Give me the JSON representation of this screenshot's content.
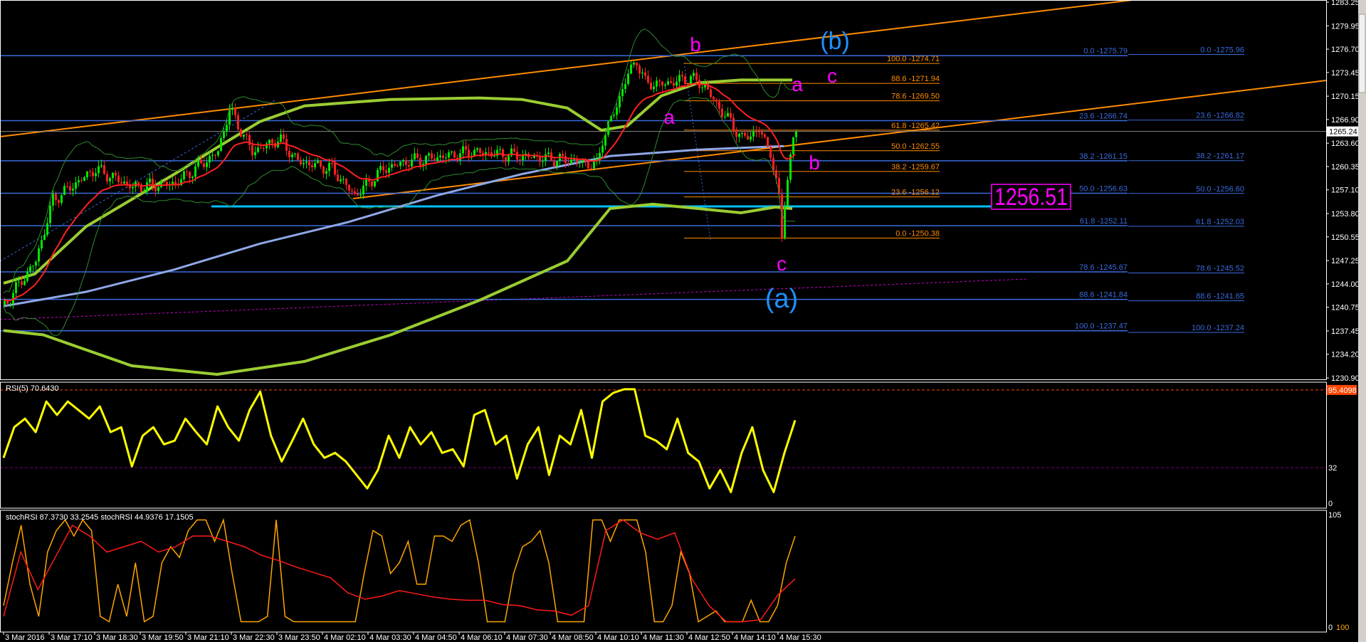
{
  "chart_data": {
    "type": "candlestick",
    "timeframe_bar_minutes": 5,
    "price_axis": {
      "range": [
        1230.9,
        1283.25
      ],
      "ticks": [
        "1283.25",
        "1279.95",
        "1276.70",
        "1273.45",
        "1270.15",
        "1266.90",
        "1263.60",
        "1260.35",
        "1257.10",
        "1253.80",
        "1250.55",
        "1247.25",
        "1244.00",
        "1240.75",
        "1237.45",
        "1234.20",
        "1230.90"
      ],
      "current_price": "1265.24"
    },
    "time_axis": {
      "ticks": [
        "3 Mar 2016",
        "3 Mar 17:10",
        "3 Mar 18:30",
        "3 Mar 19:50",
        "3 Mar 21:10",
        "3 Mar 22:30",
        "3 Mar 23:50",
        "4 Mar 02:10",
        "4 Mar 03:30",
        "4 Mar 04:50",
        "4 Mar 06:10",
        "4 Mar 07:30",
        "4 Mar 08:50",
        "4 Mar 10:10",
        "4 Mar 11:30",
        "4 Mar 12:50",
        "4 Mar 14:10",
        "4 Mar 15:30"
      ]
    },
    "price_path": [
      [
        "3 Mar 15:50",
        1241.1
      ],
      [
        "3 Mar 16:45",
        1247.2
      ],
      [
        "3 Mar 17:15",
        1255.7
      ],
      [
        "3 Mar 18:30",
        1260.0
      ],
      [
        "3 Mar 19:35",
        1257.5
      ],
      [
        "3 Mar 20:50",
        1258.0
      ],
      [
        "3 Mar 22:05",
        1262.4
      ],
      [
        "3 Mar 22:25",
        1268.4
      ],
      [
        "3 Mar 23:05",
        1262.4
      ],
      [
        "3 Mar 23:55",
        1264.2
      ],
      [
        "4 Mar 00:50",
        1261.1
      ],
      [
        "4 Mar 02:25",
        1260.0
      ],
      [
        "4 Mar 03:05",
        1256.3
      ],
      [
        "4 Mar 03:55",
        1260.0
      ],
      [
        "4 Mar 04:40",
        1261.1
      ],
      [
        "4 Mar 05:45",
        1261.8
      ],
      [
        "4 Mar 06:30",
        1262.4
      ],
      [
        "4 Mar 08:00",
        1261.8
      ],
      [
        "4 Mar 09:35",
        1261.1
      ],
      [
        "4 Mar 10:10",
        1260.5
      ],
      [
        "4 Mar 10:20",
        1264.2
      ],
      [
        "4 Mar 10:40",
        1267.8
      ],
      [
        "4 Mar 11:05",
        1273.3
      ],
      [
        "4 Mar 11:20",
        1275.1
      ],
      [
        "4 Mar 11:35",
        1272.0
      ],
      [
        "4 Mar 12:05",
        1271.8
      ],
      [
        "4 Mar 12:55",
        1272.7
      ],
      [
        "4 Mar 13:20",
        1271.5
      ],
      [
        "4 Mar 13:40",
        1269.0
      ],
      [
        "4 Mar 14:10",
        1266.0
      ],
      [
        "4 Mar 14:25",
        1264.2
      ],
      [
        "4 Mar 14:55",
        1265.4
      ],
      [
        "4 Mar 15:15",
        1262.4
      ],
      [
        "4 Mar 15:30",
        1255.7
      ],
      [
        "4 Mar 15:35",
        1250.8
      ],
      [
        "4 Mar 15:40",
        1255.7
      ],
      [
        "4 Mar 15:55",
        1264.2
      ],
      [
        "4 Mar 16:00",
        1265.24
      ]
    ],
    "overlays": {
      "green_upper": [
        [
          "3 Mar 15:50",
          1244.1
        ],
        [
          "3 Mar 16:45",
          1245.4
        ],
        [
          "3 Mar 18:15",
          1252.0
        ],
        [
          "3 Mar 20:50",
          1259.3
        ],
        [
          "3 Mar 22:05",
          1263.0
        ],
        [
          "3 Mar 23:20",
          1266.6
        ],
        [
          "4 Mar 01:15",
          1268.8
        ],
        [
          "4 Mar 04:10",
          1269.7
        ],
        [
          "4 Mar 06:45",
          1269.9
        ],
        [
          "4 Mar 08:00",
          1269.7
        ],
        [
          "4 Mar 09:20",
          1268.5
        ],
        [
          "4 Mar 10:20",
          1265.4
        ],
        [
          "4 Mar 11:05",
          1266.0
        ],
        [
          "4 Mar 12:05",
          1270.2
        ],
        [
          "4 Mar 13:10",
          1272.0
        ],
        [
          "4 Mar 14:25",
          1272.4
        ],
        [
          "4 Mar 15:55",
          1272.4
        ]
      ],
      "green_lower": [
        [
          "3 Mar 15:50",
          1237.5
        ],
        [
          "3 Mar 17:00",
          1236.9
        ],
        [
          "3 Mar 19:35",
          1232.6
        ],
        [
          "3 Mar 22:05",
          1231.4
        ],
        [
          "4 Mar 01:15",
          1233.2
        ],
        [
          "4 Mar 04:10",
          1236.9
        ],
        [
          "4 Mar 06:45",
          1241.7
        ],
        [
          "4 Mar 09:20",
          1247.2
        ],
        [
          "4 Mar 10:35",
          1254.5
        ],
        [
          "4 Mar 11:50",
          1255.1
        ],
        [
          "4 Mar 13:10",
          1254.5
        ],
        [
          "4 Mar 14:25",
          1253.9
        ],
        [
          "4 Mar 15:25",
          1254.7
        ],
        [
          "4 Mar 15:55",
          1254.5
        ]
      ],
      "blue_ma": [
        [
          "3 Mar 15:50",
          1240.9
        ],
        [
          "3 Mar 18:15",
          1242.9
        ],
        [
          "3 Mar 20:50",
          1246.0
        ],
        [
          "3 Mar 23:20",
          1249.6
        ],
        [
          "4 Mar 02:55",
          1252.6
        ],
        [
          "4 Mar 05:30",
          1256.3
        ],
        [
          "4 Mar 08:00",
          1259.3
        ],
        [
          "4 Mar 10:35",
          1261.8
        ],
        [
          "4 Mar 13:10",
          1262.7
        ],
        [
          "4 Mar 15:40",
          1263.2
        ]
      ],
      "colors": {
        "red_ma": "#ff2020",
        "green_ma": "#9acd32",
        "blue_ma": "#8fa8e8",
        "bands": "#2e8b2e"
      }
    },
    "fib_blue": {
      "color": "#3a6bdc",
      "set1": [
        [
          "0.0 -1275.79",
          1275.79
        ],
        [
          "23.6 -1266.74",
          1266.74
        ],
        [
          "38.2 -1261.15",
          1261.15
        ],
        [
          "50.0 -1256.63",
          1256.63
        ],
        [
          "61.8 -1252.11",
          1252.11
        ],
        [
          "78.6 -1245.67",
          1245.67
        ],
        [
          "88.6 -1241.84",
          1241.84
        ],
        [
          "100.0 -1237.47",
          1237.47
        ]
      ],
      "set2": [
        [
          "0.0 -1275.96",
          1275.96
        ],
        [
          "23.6 -1266.82",
          1266.82
        ],
        [
          "38.2 -1261.17",
          1261.17
        ],
        [
          "50.0 -1256.60",
          1256.6
        ],
        [
          "61.8 -1252.03",
          1252.03
        ],
        [
          "78.6 -1245.52",
          1245.52
        ],
        [
          "88.6 -1241.65",
          1241.65
        ],
        [
          "100.0 -1237.24",
          1237.24
        ]
      ]
    },
    "fib_orange": {
      "color": "#ff8c00",
      "levels": [
        [
          "100.0 -1274.71",
          1274.71
        ],
        [
          "88.6 -1271.94",
          1271.94
        ],
        [
          "78.6 -1269.50",
          1269.5
        ],
        [
          "61.8 -1265.42",
          1265.42
        ],
        [
          "50.0 -1262.55",
          1262.55
        ],
        [
          "38.2 -1259.67",
          1259.67
        ],
        [
          "23.6 -1256.12",
          1256.12
        ],
        [
          "0.0 -1250.38",
          1250.38
        ]
      ]
    },
    "support_level": {
      "value": 1256.51,
      "label": "1256.51",
      "color": "#ff00ff",
      "line_color": "#00bfff",
      "line_price": 1254.8
    },
    "wave_labels": {
      "b1": "b",
      "b_major": "(b)",
      "a2": "a",
      "c2": "c",
      "a1": "a",
      "b2": "b",
      "c1": "c",
      "a_major": "(a)",
      "minor_color": "#ff00ff",
      "major_color": "#1e90ff"
    },
    "rsi": {
      "label": "RSI(5) 70.6430",
      "range": [
        0,
        100
      ],
      "levels": {
        "upper": 95.4098,
        "upper_label": "95.4098",
        "lower": 32,
        "lower_label": "32",
        "zero_label": "0"
      },
      "color": "#ffff00",
      "values": [
        40,
        65,
        72,
        61,
        86,
        75,
        86,
        79,
        72,
        82,
        61,
        65,
        33,
        58,
        65,
        51,
        54,
        72,
        61,
        51,
        82,
        65,
        54,
        79,
        94,
        58,
        37,
        54,
        72,
        51,
        40,
        44,
        37,
        26,
        15,
        30,
        58,
        40,
        65,
        51,
        61,
        44,
        47,
        33,
        75,
        79,
        51,
        58,
        23,
        51,
        65,
        26,
        58,
        51,
        79,
        40,
        86,
        93,
        96,
        96,
        58,
        54,
        47,
        72,
        44,
        37,
        15,
        30,
        12,
        44,
        65,
        30,
        12,
        44,
        70.64
      ]
    },
    "stoch_rsi": {
      "label": "stochRSI 87.3730 33.2545   stochRSI 44.9376 17.1505",
      "range": [
        0,
        105
      ],
      "axis_labels": {
        "top": "105",
        "bottom_a": "0",
        "bottom_b": "100"
      },
      "fast_color": "#ffa500",
      "slow_color": "#ff1a1a",
      "fast": [
        20,
        60,
        95,
        40,
        10,
        70,
        90,
        100,
        85,
        100,
        90,
        10,
        5,
        40,
        10,
        60,
        5,
        10,
        60,
        75,
        65,
        90,
        100,
        100,
        80,
        100,
        50,
        5,
        5,
        5,
        10,
        100,
        10,
        5,
        5,
        5,
        5,
        5,
        5,
        5,
        5,
        50,
        90,
        85,
        50,
        60,
        80,
        40,
        40,
        85,
        85,
        80,
        95,
        100,
        60,
        5,
        5,
        5,
        50,
        75,
        80,
        90,
        60,
        5,
        5,
        5,
        5,
        100,
        100,
        80,
        100,
        100,
        100,
        70,
        5,
        5,
        20,
        70,
        50,
        5,
        10,
        15,
        5,
        5,
        5,
        25,
        5,
        5,
        20,
        60,
        85
      ],
      "slow": [
        10,
        70,
        35,
        65,
        95,
        85,
        70,
        75,
        80,
        70,
        75,
        85,
        85,
        80,
        75,
        67,
        62,
        56,
        51,
        46,
        32,
        26,
        29,
        34,
        31,
        28,
        26,
        25,
        25,
        21,
        20,
        16,
        15,
        11,
        20,
        90,
        100,
        88,
        82,
        88,
        45,
        20,
        5,
        5,
        7,
        30,
        45
      ]
    }
  }
}
